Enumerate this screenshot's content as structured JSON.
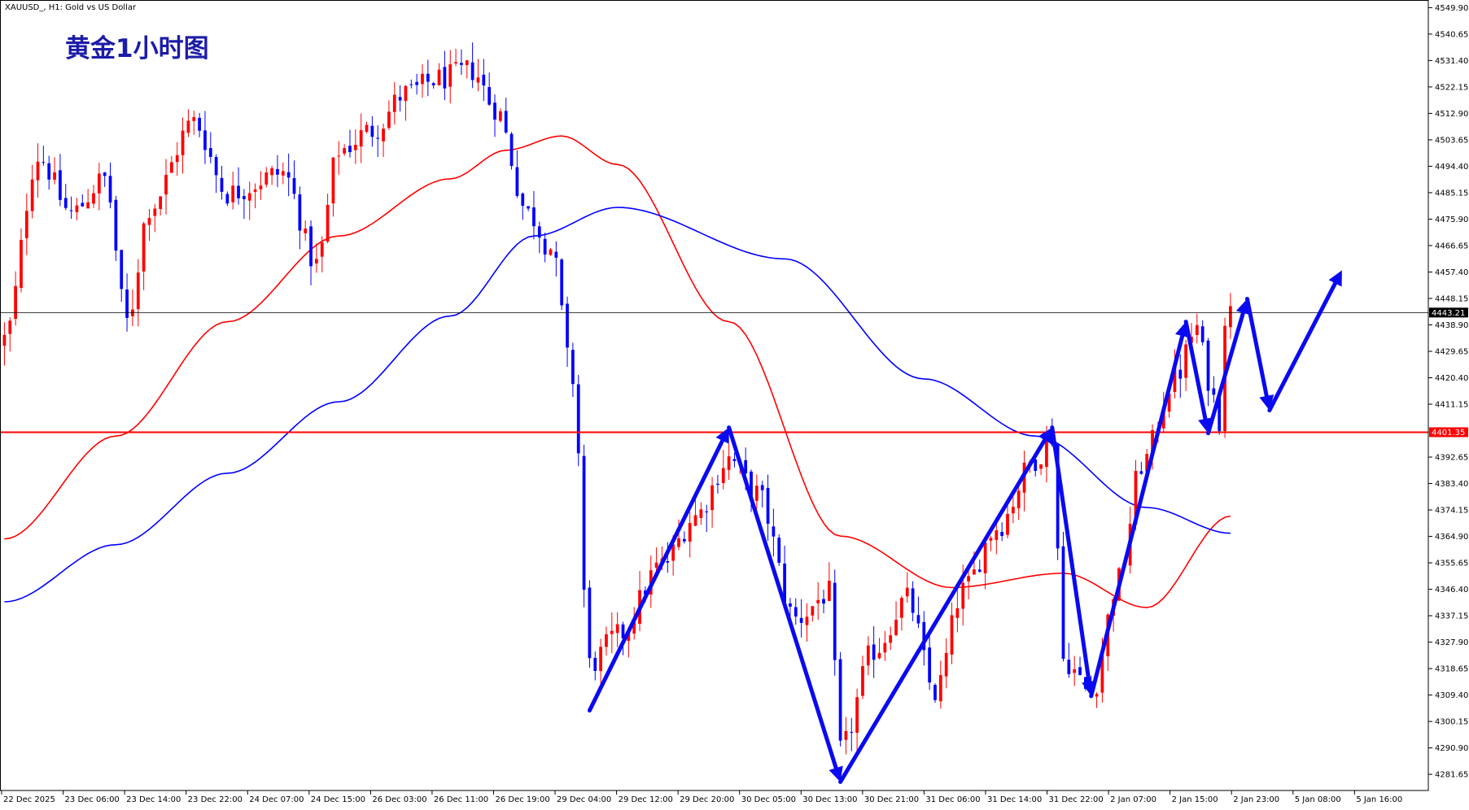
{
  "header": {
    "symbol_info": "XAUUSD_, H1:  Gold vs US Dollar",
    "chart_title": "黄金1小时图"
  },
  "colors": {
    "bull": "#ff0000",
    "bear": "#0000ff",
    "ma_fast": "#ff0000",
    "ma_slow": "#0000ff",
    "level_line": "#ff0000",
    "current_line": "#000000",
    "arrow": "#0a0af0",
    "title": "#1c1ca8"
  },
  "chart_data": {
    "type": "candlestick",
    "symbol": "XAUUSD_",
    "timeframe": "H1",
    "ylim": [
      4276.0,
      4552.0
    ],
    "y_ticks": [
      "4549.90",
      "4540.65",
      "4531.40",
      "4522.15",
      "4512.90",
      "4503.65",
      "4494.40",
      "4485.15",
      "4475.90",
      "4466.65",
      "4457.40",
      "4448.15",
      "4438.90",
      "4429.65",
      "4420.40",
      "4411.15",
      "4392.65",
      "4383.40",
      "4374.15",
      "4364.90",
      "4355.65",
      "4346.40",
      "4337.15",
      "4327.90",
      "4318.65",
      "4309.40",
      "4300.15",
      "4290.90",
      "4281.65"
    ],
    "x_ticks": [
      "22 Dec 2025",
      "23 Dec 06:00",
      "23 Dec 14:00",
      "23 Dec 22:00",
      "24 Dec 07:00",
      "24 Dec 15:00",
      "26 Dec 03:00",
      "26 Dec 11:00",
      "26 Dec 19:00",
      "29 Dec 04:00",
      "29 Dec 12:00",
      "29 Dec 20:00",
      "30 Dec 05:00",
      "30 Dec 13:00",
      "30 Dec 21:00",
      "31 Dec 06:00",
      "31 Dec 14:00",
      "31 Dec 22:00",
      "2 Jan 07:00",
      "2 Jan 15:00",
      "2 Jan 23:00",
      "5 Jan 08:00",
      "5 Jan 16:00"
    ],
    "current_price": 4443.21,
    "current_price_label": "4443.21",
    "horizontal_level": 4401.35,
    "horizontal_level_label": "4401.35",
    "ma_fast_anchors": [
      [
        0,
        4364
      ],
      [
        20,
        4400
      ],
      [
        40,
        4440
      ],
      [
        60,
        4470
      ],
      [
        80,
        4490
      ],
      [
        90,
        4500
      ],
      [
        100,
        4505
      ],
      [
        110,
        4495
      ],
      [
        130,
        4440
      ],
      [
        150,
        4365
      ],
      [
        170,
        4347
      ],
      [
        190,
        4352
      ],
      [
        205,
        4340
      ],
      [
        220,
        4372
      ]
    ],
    "ma_slow_anchors": [
      [
        0,
        4342
      ],
      [
        20,
        4362
      ],
      [
        40,
        4387
      ],
      [
        60,
        4412
      ],
      [
        80,
        4442
      ],
      [
        95,
        4470
      ],
      [
        110,
        4480
      ],
      [
        140,
        4462
      ],
      [
        165,
        4420
      ],
      [
        185,
        4400
      ],
      [
        205,
        4375
      ],
      [
        220,
        4366
      ]
    ],
    "candle_anchors": [
      [
        0,
        4434
      ],
      [
        6,
        4498
      ],
      [
        12,
        4478
      ],
      [
        18,
        4490
      ],
      [
        22,
        4440
      ],
      [
        26,
        4480
      ],
      [
        34,
        4510
      ],
      [
        40,
        4485
      ],
      [
        50,
        4492
      ],
      [
        56,
        4460
      ],
      [
        60,
        4500
      ],
      [
        66,
        4507
      ],
      [
        72,
        4520
      ],
      [
        78,
        4525
      ],
      [
        84,
        4528
      ],
      [
        88,
        4515
      ],
      [
        94,
        4478
      ],
      [
        98,
        4466
      ],
      [
        102,
        4420
      ],
      [
        105,
        4320
      ],
      [
        110,
        4330
      ],
      [
        118,
        4355
      ],
      [
        124,
        4372
      ],
      [
        130,
        4392
      ],
      [
        135,
        4380
      ],
      [
        142,
        4336
      ],
      [
        148,
        4345
      ],
      [
        150,
        4290
      ],
      [
        156,
        4325
      ],
      [
        162,
        4343
      ],
      [
        167,
        4310
      ],
      [
        172,
        4346
      ],
      [
        178,
        4368
      ],
      [
        185,
        4392
      ],
      [
        188,
        4400
      ],
      [
        190,
        4322
      ],
      [
        195,
        4310
      ],
      [
        200,
        4350
      ],
      [
        204,
        4390
      ],
      [
        210,
        4420
      ],
      [
        214,
        4438
      ],
      [
        216,
        4420
      ],
      [
        218,
        4406
      ],
      [
        219,
        4442
      ],
      [
        220,
        4443.21
      ]
    ],
    "forecast_arrows": [
      {
        "points": [
          [
            105,
            4304
          ],
          [
            130,
            4403
          ],
          [
            150,
            4279
          ],
          [
            188,
            4403
          ],
          [
            195,
            4309
          ],
          [
            212,
            4440
          ],
          [
            216,
            4401
          ],
          [
            223,
            4448
          ],
          [
            227,
            4409
          ],
          [
            240,
            4458
          ]
        ]
      }
    ]
  }
}
